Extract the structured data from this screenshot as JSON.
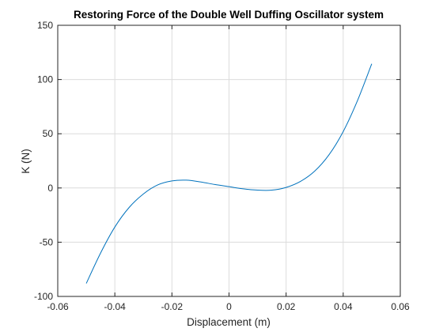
{
  "chart_data": {
    "type": "line",
    "title": "Restoring Force of the Double Well Duffing Oscillator system",
    "xlabel": "Displacement (m)",
    "ylabel": "K (N)",
    "xlim": [
      -0.06,
      0.06
    ],
    "ylim": [
      -100,
      150
    ],
    "xticks": [
      -0.06,
      -0.04,
      -0.02,
      0,
      0.02,
      0.04,
      0.06
    ],
    "xtick_labels": [
      "-0.06",
      "-0.04",
      "-0.02",
      "0",
      "0.02",
      "0.04",
      "0.06"
    ],
    "yticks": [
      -100,
      -50,
      0,
      50,
      100,
      150
    ],
    "ytick_labels": [
      "-100",
      "-50",
      "0",
      "50",
      "100",
      "150"
    ],
    "grid": true,
    "series": [
      {
        "color": "#0072BD",
        "x": [
          -0.05,
          -0.045,
          -0.04,
          -0.035,
          -0.03,
          -0.025,
          -0.02,
          -0.015,
          -0.01,
          -0.005,
          0,
          0.005,
          0.01,
          0.015,
          0.02,
          0.025,
          0.03,
          0.035,
          0.04,
          0.045,
          0.05
        ],
        "y": [
          -88,
          -60,
          -36,
          -18,
          -5.5,
          2.8,
          6.5,
          7.2,
          5.6,
          3.2,
          1.2,
          -0.8,
          -2.0,
          -2.0,
          0.5,
          6.0,
          15.5,
          30.5,
          52.0,
          80.5,
          114.5
        ]
      }
    ]
  }
}
